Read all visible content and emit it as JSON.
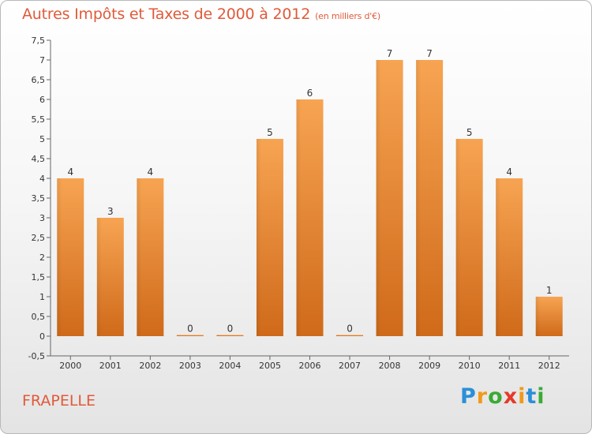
{
  "chart_data": {
    "type": "bar",
    "title": "Autres Impôts et Taxes de 2000 à 2012",
    "subtitle": "(en milliers d'€)",
    "categories": [
      "2000",
      "2001",
      "2002",
      "2003",
      "2004",
      "2005",
      "2006",
      "2007",
      "2008",
      "2009",
      "2010",
      "2011",
      "2012"
    ],
    "values": [
      4,
      3,
      4,
      0,
      0,
      5,
      6,
      0,
      7,
      7,
      5,
      4,
      1
    ],
    "value_labels": [
      "4",
      "3",
      "4",
      "0",
      "0",
      "5",
      "6",
      "0",
      "7",
      "7",
      "5",
      "4",
      "1"
    ],
    "ylim": [
      -0.5,
      7.5
    ],
    "yticks": [
      "-0,5",
      "0",
      "0,5",
      "1",
      "1,5",
      "2",
      "2,5",
      "3",
      "3,5",
      "4",
      "4,5",
      "5",
      "5,5",
      "6",
      "6,5",
      "7",
      "7,5"
    ],
    "ytick_values": [
      -0.5,
      0,
      0.5,
      1,
      1.5,
      2,
      2.5,
      3,
      3.5,
      4,
      4.5,
      5,
      5.5,
      6,
      6.5,
      7,
      7.5
    ],
    "xlabel": "",
    "ylabel": "",
    "grid": false,
    "bar_color": "#f0903a",
    "title_color": "#e05a3a"
  },
  "commune": "FRAPELLE",
  "logo": {
    "letters": [
      "P",
      "r",
      "o",
      "x",
      "i",
      "t",
      "i"
    ],
    "colors": [
      "#2a8fd8",
      "#f09a1a",
      "#3aaa35",
      "#e53a2a",
      "#f09a1a",
      "#2a8fd8",
      "#3aaa35"
    ]
  }
}
